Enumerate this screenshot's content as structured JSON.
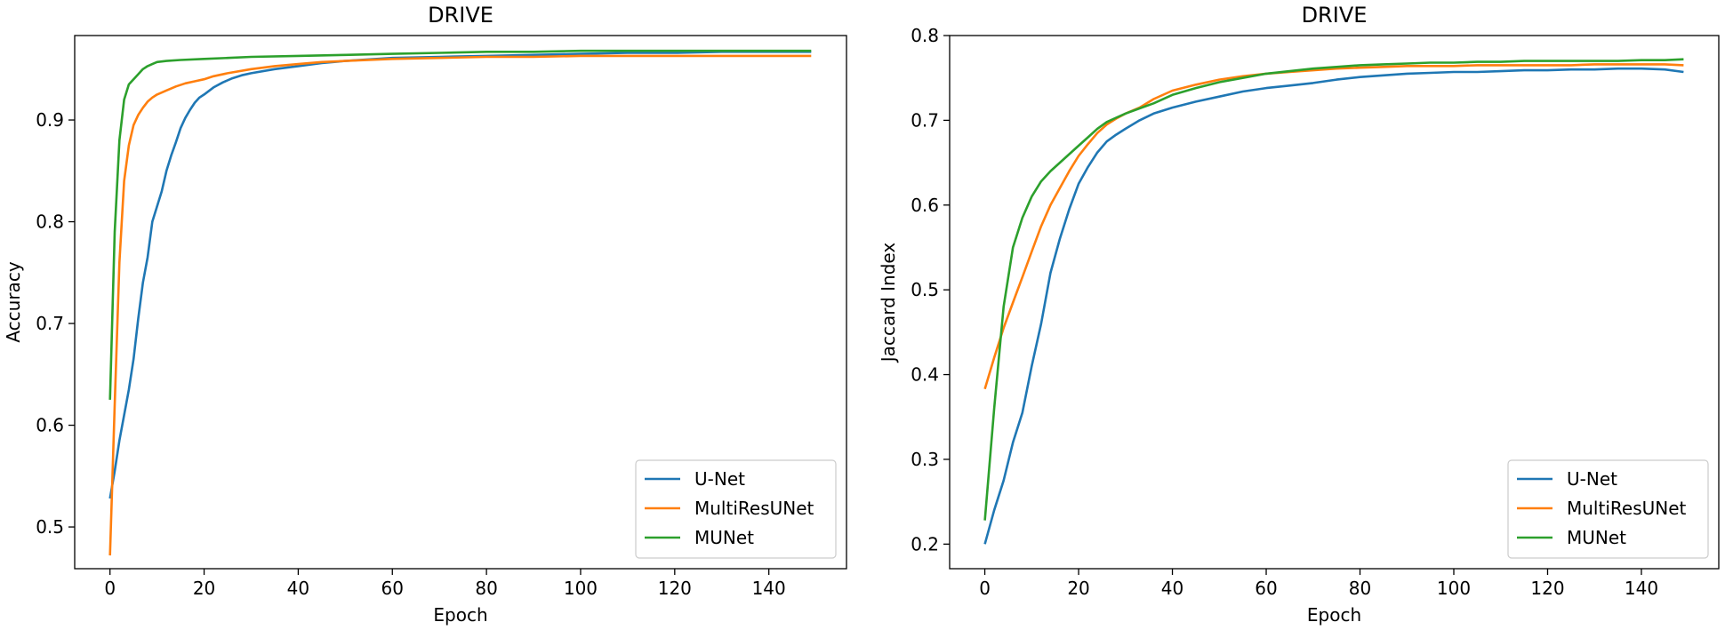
{
  "chart_data": [
    {
      "type": "line",
      "title": "DRIVE",
      "xlabel": "Epoch",
      "ylabel": "Accuracy",
      "xlim": [
        -7.5,
        156.5
      ],
      "ylim": [
        0.459,
        0.983
      ],
      "xticks": [
        0,
        20,
        40,
        60,
        80,
        100,
        120,
        140
      ],
      "yticks": [
        0.5,
        0.6,
        0.7,
        0.8,
        0.9
      ],
      "ytick_decimals": 1,
      "legend": "lower-right",
      "series": [
        {
          "name": "U-Net",
          "color": "#1f77b4",
          "points": [
            [
              0,
              0.528
            ],
            [
              1,
              0.555
            ],
            [
              2,
              0.585
            ],
            [
              3,
              0.61
            ],
            [
              4,
              0.635
            ],
            [
              5,
              0.665
            ],
            [
              6,
              0.705
            ],
            [
              7,
              0.74
            ],
            [
              8,
              0.765
            ],
            [
              9,
              0.8
            ],
            [
              10,
              0.815
            ],
            [
              11,
              0.83
            ],
            [
              12,
              0.85
            ],
            [
              13,
              0.865
            ],
            [
              14,
              0.878
            ],
            [
              15,
              0.892
            ],
            [
              16,
              0.902
            ],
            [
              17,
              0.91
            ],
            [
              18,
              0.917
            ],
            [
              19,
              0.922
            ],
            [
              20,
              0.925
            ],
            [
              22,
              0.932
            ],
            [
              24,
              0.937
            ],
            [
              26,
              0.941
            ],
            [
              28,
              0.944
            ],
            [
              30,
              0.946
            ],
            [
              35,
              0.95
            ],
            [
              40,
              0.953
            ],
            [
              45,
              0.956
            ],
            [
              50,
              0.958
            ],
            [
              60,
              0.961
            ],
            [
              70,
              0.962
            ],
            [
              80,
              0.963
            ],
            [
              90,
              0.964
            ],
            [
              100,
              0.965
            ],
            [
              110,
              0.966
            ],
            [
              120,
              0.966
            ],
            [
              130,
              0.967
            ],
            [
              140,
              0.967
            ],
            [
              149,
              0.967
            ]
          ]
        },
        {
          "name": "MultiResUNet",
          "color": "#ff7f0e",
          "points": [
            [
              0,
              0.472
            ],
            [
              1,
              0.62
            ],
            [
              2,
              0.76
            ],
            [
              3,
              0.84
            ],
            [
              4,
              0.875
            ],
            [
              5,
              0.895
            ],
            [
              6,
              0.905
            ],
            [
              7,
              0.912
            ],
            [
              8,
              0.918
            ],
            [
              9,
              0.922
            ],
            [
              10,
              0.925
            ],
            [
              12,
              0.929
            ],
            [
              14,
              0.933
            ],
            [
              16,
              0.936
            ],
            [
              18,
              0.938
            ],
            [
              20,
              0.94
            ],
            [
              22,
              0.943
            ],
            [
              25,
              0.946
            ],
            [
              30,
              0.95
            ],
            [
              35,
              0.953
            ],
            [
              40,
              0.955
            ],
            [
              45,
              0.957
            ],
            [
              50,
              0.958
            ],
            [
              60,
              0.96
            ],
            [
              70,
              0.961
            ],
            [
              80,
              0.962
            ],
            [
              90,
              0.962
            ],
            [
              100,
              0.963
            ],
            [
              110,
              0.963
            ],
            [
              120,
              0.963
            ],
            [
              130,
              0.963
            ],
            [
              140,
              0.963
            ],
            [
              149,
              0.963
            ]
          ]
        },
        {
          "name": "MUNet",
          "color": "#2ca02c",
          "points": [
            [
              0,
              0.625
            ],
            [
              1,
              0.79
            ],
            [
              2,
              0.88
            ],
            [
              3,
              0.92
            ],
            [
              4,
              0.935
            ],
            [
              5,
              0.94
            ],
            [
              6,
              0.945
            ],
            [
              7,
              0.95
            ],
            [
              8,
              0.953
            ],
            [
              9,
              0.955
            ],
            [
              10,
              0.957
            ],
            [
              12,
              0.958
            ],
            [
              15,
              0.959
            ],
            [
              20,
              0.96
            ],
            [
              25,
              0.961
            ],
            [
              30,
              0.962
            ],
            [
              40,
              0.963
            ],
            [
              50,
              0.964
            ],
            [
              60,
              0.965
            ],
            [
              70,
              0.966
            ],
            [
              80,
              0.967
            ],
            [
              90,
              0.967
            ],
            [
              100,
              0.968
            ],
            [
              110,
              0.968
            ],
            [
              120,
              0.968
            ],
            [
              130,
              0.968
            ],
            [
              140,
              0.968
            ],
            [
              149,
              0.968
            ]
          ]
        }
      ]
    },
    {
      "type": "line",
      "title": "DRIVE",
      "xlabel": "Epoch",
      "ylabel": "Jaccard Index",
      "xlim": [
        -7.5,
        156.5
      ],
      "ylim": [
        0.171,
        0.8
      ],
      "xticks": [
        0,
        20,
        40,
        60,
        80,
        100,
        120,
        140
      ],
      "yticks": [
        0.2,
        0.3,
        0.4,
        0.5,
        0.6,
        0.7,
        0.8
      ],
      "ytick_decimals": 1,
      "legend": "lower-right",
      "series": [
        {
          "name": "U-Net",
          "color": "#1f77b4",
          "points": [
            [
              0,
              0.2
            ],
            [
              2,
              0.24
            ],
            [
              4,
              0.275
            ],
            [
              6,
              0.32
            ],
            [
              8,
              0.355
            ],
            [
              10,
              0.41
            ],
            [
              12,
              0.46
            ],
            [
              14,
              0.52
            ],
            [
              16,
              0.56
            ],
            [
              18,
              0.595
            ],
            [
              20,
              0.625
            ],
            [
              22,
              0.645
            ],
            [
              24,
              0.662
            ],
            [
              26,
              0.675
            ],
            [
              28,
              0.683
            ],
            [
              30,
              0.69
            ],
            [
              33,
              0.7
            ],
            [
              36,
              0.708
            ],
            [
              40,
              0.715
            ],
            [
              45,
              0.722
            ],
            [
              50,
              0.728
            ],
            [
              55,
              0.734
            ],
            [
              60,
              0.738
            ],
            [
              65,
              0.741
            ],
            [
              70,
              0.744
            ],
            [
              75,
              0.748
            ],
            [
              80,
              0.751
            ],
            [
              85,
              0.753
            ],
            [
              90,
              0.755
            ],
            [
              95,
              0.756
            ],
            [
              100,
              0.757
            ],
            [
              105,
              0.757
            ],
            [
              110,
              0.758
            ],
            [
              115,
              0.759
            ],
            [
              120,
              0.759
            ],
            [
              125,
              0.76
            ],
            [
              130,
              0.76
            ],
            [
              135,
              0.761
            ],
            [
              140,
              0.761
            ],
            [
              145,
              0.76
            ],
            [
              149,
              0.757
            ]
          ]
        },
        {
          "name": "MultiResUNet",
          "color": "#ff7f0e",
          "points": [
            [
              0,
              0.383
            ],
            [
              2,
              0.42
            ],
            [
              4,
              0.455
            ],
            [
              6,
              0.485
            ],
            [
              8,
              0.515
            ],
            [
              10,
              0.545
            ],
            [
              12,
              0.575
            ],
            [
              14,
              0.6
            ],
            [
              16,
              0.62
            ],
            [
              18,
              0.64
            ],
            [
              20,
              0.658
            ],
            [
              22,
              0.672
            ],
            [
              24,
              0.685
            ],
            [
              26,
              0.695
            ],
            [
              28,
              0.702
            ],
            [
              30,
              0.708
            ],
            [
              33,
              0.715
            ],
            [
              36,
              0.725
            ],
            [
              40,
              0.735
            ],
            [
              45,
              0.742
            ],
            [
              50,
              0.748
            ],
            [
              55,
              0.752
            ],
            [
              60,
              0.755
            ],
            [
              65,
              0.757
            ],
            [
              70,
              0.759
            ],
            [
              75,
              0.761
            ],
            [
              80,
              0.762
            ],
            [
              85,
              0.763
            ],
            [
              90,
              0.764
            ],
            [
              95,
              0.764
            ],
            [
              100,
              0.764
            ],
            [
              105,
              0.765
            ],
            [
              110,
              0.765
            ],
            [
              115,
              0.765
            ],
            [
              120,
              0.765
            ],
            [
              125,
              0.765
            ],
            [
              130,
              0.766
            ],
            [
              135,
              0.766
            ],
            [
              140,
              0.766
            ],
            [
              145,
              0.766
            ],
            [
              149,
              0.765
            ]
          ]
        },
        {
          "name": "MUNet",
          "color": "#2ca02c",
          "points": [
            [
              0,
              0.228
            ],
            [
              2,
              0.36
            ],
            [
              4,
              0.48
            ],
            [
              6,
              0.55
            ],
            [
              8,
              0.585
            ],
            [
              10,
              0.61
            ],
            [
              12,
              0.628
            ],
            [
              14,
              0.64
            ],
            [
              16,
              0.65
            ],
            [
              18,
              0.66
            ],
            [
              20,
              0.67
            ],
            [
              22,
              0.68
            ],
            [
              24,
              0.69
            ],
            [
              26,
              0.698
            ],
            [
              28,
              0.703
            ],
            [
              30,
              0.708
            ],
            [
              33,
              0.714
            ],
            [
              36,
              0.72
            ],
            [
              40,
              0.73
            ],
            [
              45,
              0.738
            ],
            [
              50,
              0.745
            ],
            [
              55,
              0.75
            ],
            [
              60,
              0.755
            ],
            [
              65,
              0.758
            ],
            [
              70,
              0.761
            ],
            [
              75,
              0.763
            ],
            [
              80,
              0.765
            ],
            [
              85,
              0.766
            ],
            [
              90,
              0.767
            ],
            [
              95,
              0.768
            ],
            [
              100,
              0.768
            ],
            [
              105,
              0.769
            ],
            [
              110,
              0.769
            ],
            [
              115,
              0.77
            ],
            [
              120,
              0.77
            ],
            [
              125,
              0.77
            ],
            [
              130,
              0.77
            ],
            [
              135,
              0.77
            ],
            [
              140,
              0.771
            ],
            [
              145,
              0.771
            ],
            [
              149,
              0.772
            ]
          ]
        }
      ]
    }
  ]
}
